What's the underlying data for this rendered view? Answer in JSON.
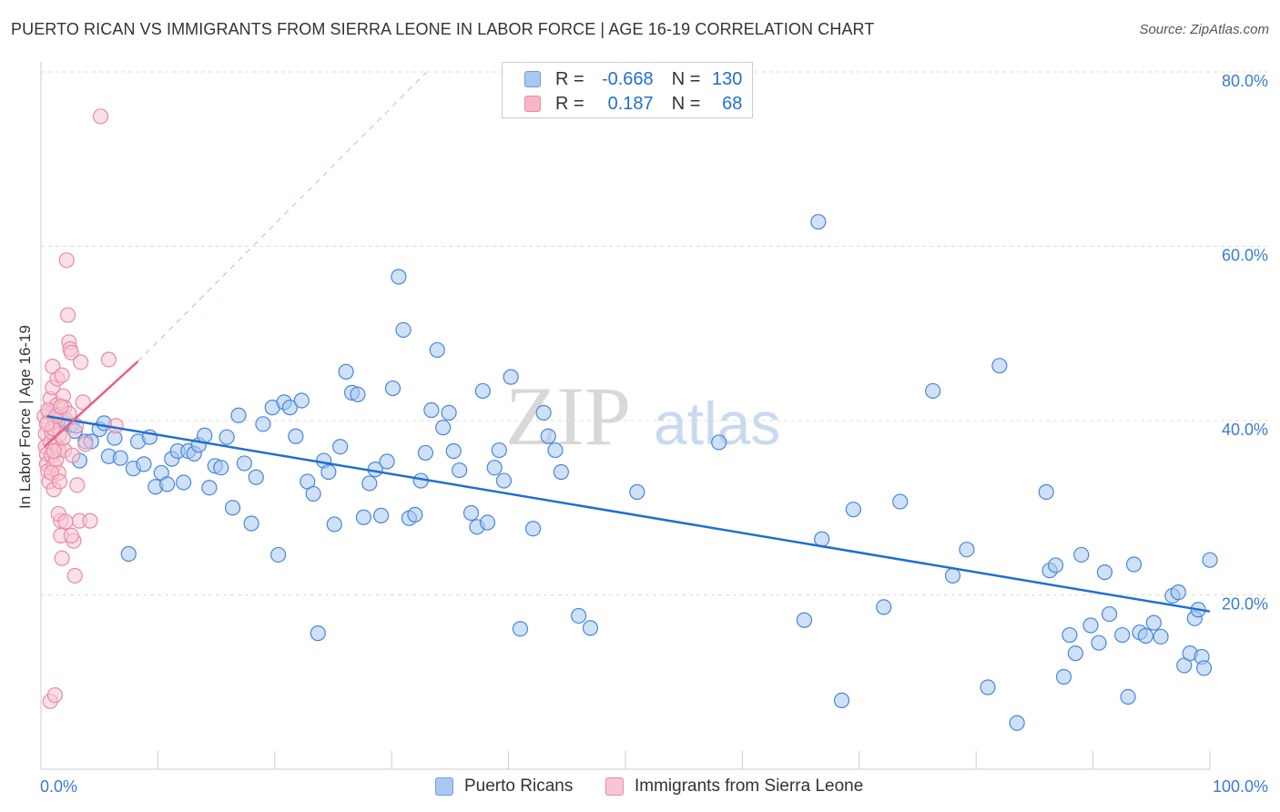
{
  "title": "PUERTO RICAN VS IMMIGRANTS FROM SIERRA LEONE IN LABOR FORCE | AGE 16-19 CORRELATION CHART",
  "source": "Source: ZipAtlas.com",
  "watermark": {
    "zip": "ZIP",
    "atlas": "atlas"
  },
  "legend": {
    "rows": [
      {
        "r_label": "R =",
        "r_value": "-0.668",
        "n_label": "N =",
        "n_value": "130",
        "color": "#a8c8f0",
        "border": "#6a9fe0"
      },
      {
        "r_label": "R =",
        "r_value": "0.187",
        "n_label": "N =",
        "n_value": "68",
        "color": "#f7b6c8",
        "border": "#e88aa5"
      }
    ]
  },
  "bottom_legend": [
    {
      "label": "Puerto Ricans",
      "color": "#a8c8f0",
      "border": "#6a9fe0"
    },
    {
      "label": "Immigrants from Sierra Leone",
      "color": "#f7c6d4",
      "border": "#e88aa5"
    }
  ],
  "chart_data": {
    "type": "scatter",
    "title": "PUERTO RICAN VS IMMIGRANTS FROM SIERRA LEONE IN LABOR FORCE | AGE 16-19 CORRELATION CHART",
    "xlabel": "",
    "ylabel": "In Labor Force | Age 16-19",
    "xlim": [
      0,
      100
    ],
    "ylim": [
      0,
      80
    ],
    "x_tick_labels": [
      "0.0%",
      "100.0%"
    ],
    "y_ticks": [
      20,
      40,
      60,
      80
    ],
    "y_tick_labels": [
      "20.0%",
      "40.0%",
      "60.0%",
      "80.0%"
    ],
    "grid": true,
    "series": [
      {
        "name": "Puerto Ricans",
        "color": "#4a86d8",
        "fill": "#a8c8f0",
        "trend": {
          "x": [
            0.5,
            100
          ],
          "y": [
            40.5,
            18.1
          ],
          "color": "#1f6fd0"
        },
        "points": [
          [
            1.0,
            41.0
          ],
          [
            1.5,
            40.2
          ],
          [
            2.0,
            39.8
          ],
          [
            2.6,
            39.5
          ],
          [
            2.9,
            38.8
          ],
          [
            3.3,
            35.4
          ],
          [
            3.8,
            37.6
          ],
          [
            4.3,
            37.6
          ],
          [
            5.0,
            39.0
          ],
          [
            5.4,
            39.7
          ],
          [
            5.8,
            35.9
          ],
          [
            6.3,
            38.0
          ],
          [
            6.8,
            35.7
          ],
          [
            7.5,
            24.7
          ],
          [
            7.9,
            34.5
          ],
          [
            8.3,
            37.6
          ],
          [
            8.8,
            35.0
          ],
          [
            9.3,
            38.1
          ],
          [
            9.8,
            32.4
          ],
          [
            10.3,
            34.0
          ],
          [
            10.8,
            32.7
          ],
          [
            11.2,
            35.6
          ],
          [
            11.7,
            36.5
          ],
          [
            12.2,
            32.9
          ],
          [
            12.6,
            36.5
          ],
          [
            13.1,
            36.2
          ],
          [
            13.5,
            37.2
          ],
          [
            14.0,
            38.3
          ],
          [
            14.4,
            32.3
          ],
          [
            14.9,
            34.8
          ],
          [
            15.4,
            34.6
          ],
          [
            15.9,
            38.1
          ],
          [
            16.4,
            30.0
          ],
          [
            16.9,
            40.6
          ],
          [
            17.4,
            35.1
          ],
          [
            18.0,
            28.2
          ],
          [
            18.4,
            33.5
          ],
          [
            19.0,
            39.6
          ],
          [
            19.8,
            41.5
          ],
          [
            20.3,
            24.6
          ],
          [
            20.8,
            42.1
          ],
          [
            21.3,
            41.5
          ],
          [
            21.8,
            38.2
          ],
          [
            22.3,
            42.3
          ],
          [
            22.8,
            33.0
          ],
          [
            23.3,
            31.6
          ],
          [
            23.7,
            15.6
          ],
          [
            24.2,
            35.4
          ],
          [
            24.6,
            34.1
          ],
          [
            25.1,
            28.1
          ],
          [
            25.6,
            37.0
          ],
          [
            26.1,
            45.6
          ],
          [
            26.6,
            43.2
          ],
          [
            27.1,
            43.0
          ],
          [
            27.6,
            28.9
          ],
          [
            28.1,
            32.8
          ],
          [
            28.6,
            34.4
          ],
          [
            29.1,
            29.1
          ],
          [
            29.6,
            35.3
          ],
          [
            30.1,
            43.7
          ],
          [
            30.6,
            56.5
          ],
          [
            31.0,
            50.4
          ],
          [
            31.5,
            28.8
          ],
          [
            32.0,
            29.2
          ],
          [
            32.5,
            33.1
          ],
          [
            32.9,
            36.3
          ],
          [
            33.4,
            41.2
          ],
          [
            33.9,
            48.1
          ],
          [
            34.4,
            39.2
          ],
          [
            34.9,
            40.9
          ],
          [
            35.3,
            36.5
          ],
          [
            35.8,
            34.3
          ],
          [
            36.8,
            29.4
          ],
          [
            37.3,
            27.8
          ],
          [
            37.8,
            43.4
          ],
          [
            38.2,
            28.3
          ],
          [
            38.8,
            34.6
          ],
          [
            39.2,
            36.6
          ],
          [
            39.6,
            33.1
          ],
          [
            40.2,
            45.0
          ],
          [
            41.0,
            16.1
          ],
          [
            42.1,
            27.6
          ],
          [
            43.0,
            40.9
          ],
          [
            43.4,
            38.2
          ],
          [
            44.0,
            36.6
          ],
          [
            44.5,
            34.1
          ],
          [
            46.0,
            17.6
          ],
          [
            47.0,
            16.2
          ],
          [
            51.0,
            31.8
          ],
          [
            58.0,
            37.5
          ],
          [
            65.3,
            17.1
          ],
          [
            66.5,
            62.8
          ],
          [
            66.8,
            26.4
          ],
          [
            68.5,
            7.9
          ],
          [
            69.5,
            29.8
          ],
          [
            72.1,
            18.6
          ],
          [
            73.5,
            30.7
          ],
          [
            76.3,
            43.4
          ],
          [
            78.0,
            22.2
          ],
          [
            79.2,
            25.2
          ],
          [
            81.0,
            9.4
          ],
          [
            82.0,
            46.3
          ],
          [
            83.5,
            5.3
          ],
          [
            86.0,
            31.8
          ],
          [
            86.3,
            22.8
          ],
          [
            86.8,
            23.4
          ],
          [
            87.5,
            10.6
          ],
          [
            88.0,
            15.4
          ],
          [
            88.5,
            13.3
          ],
          [
            89.0,
            24.6
          ],
          [
            89.8,
            16.5
          ],
          [
            90.5,
            14.5
          ],
          [
            91.0,
            22.6
          ],
          [
            91.4,
            17.8
          ],
          [
            92.5,
            15.4
          ],
          [
            93.0,
            8.3
          ],
          [
            93.5,
            23.5
          ],
          [
            94.0,
            15.7
          ],
          [
            94.5,
            15.3
          ],
          [
            95.2,
            16.8
          ],
          [
            95.8,
            15.2
          ],
          [
            96.8,
            19.9
          ],
          [
            97.3,
            20.3
          ],
          [
            97.8,
            11.9
          ],
          [
            98.3,
            13.3
          ],
          [
            98.7,
            17.3
          ],
          [
            99.3,
            12.9
          ],
          [
            99.5,
            11.6
          ],
          [
            100.0,
            24.0
          ],
          [
            99.0,
            18.3
          ]
        ]
      },
      {
        "name": "Immigrants from Sierra Leone",
        "color": "#e88aa5",
        "fill": "#f7c6d4",
        "trend": {
          "x": [
            0.3,
            8.3
          ],
          "y": [
            37.0,
            46.8
          ],
          "color": "#e8608a"
        },
        "extrapolation": {
          "x": [
            8.3,
            33.0
          ],
          "y": [
            46.8,
            80.0
          ]
        },
        "points": [
          [
            0.3,
            40.5
          ],
          [
            0.4,
            38.5
          ],
          [
            0.4,
            37.0
          ],
          [
            0.5,
            36.1
          ],
          [
            0.5,
            35.0
          ],
          [
            0.6,
            34.2
          ],
          [
            0.6,
            39.8
          ],
          [
            0.7,
            41.0
          ],
          [
            0.7,
            33.0
          ],
          [
            0.8,
            37.5
          ],
          [
            0.8,
            42.5
          ],
          [
            0.9,
            38.7
          ],
          [
            0.9,
            36.0
          ],
          [
            1.0,
            43.8
          ],
          [
            1.0,
            46.2
          ],
          [
            1.1,
            34.9
          ],
          [
            1.1,
            32.1
          ],
          [
            1.2,
            40.0
          ],
          [
            1.2,
            39.0
          ],
          [
            1.3,
            37.2
          ],
          [
            1.3,
            35.5
          ],
          [
            1.4,
            41.8
          ],
          [
            1.4,
            44.8
          ],
          [
            1.5,
            34.0
          ],
          [
            1.5,
            36.7
          ],
          [
            1.6,
            38.4
          ],
          [
            1.6,
            40.7
          ],
          [
            1.7,
            28.5
          ],
          [
            1.7,
            26.8
          ],
          [
            1.8,
            24.2
          ],
          [
            1.8,
            45.2
          ],
          [
            1.9,
            42.8
          ],
          [
            2.0,
            41.5
          ],
          [
            2.0,
            36.6
          ],
          [
            2.1,
            40.1
          ],
          [
            2.2,
            58.4
          ],
          [
            2.3,
            52.1
          ],
          [
            2.4,
            49.0
          ],
          [
            2.5,
            48.2
          ],
          [
            2.6,
            47.8
          ],
          [
            2.7,
            36.0
          ],
          [
            2.8,
            26.2
          ],
          [
            2.9,
            22.2
          ],
          [
            3.0,
            39.4
          ],
          [
            3.1,
            32.6
          ],
          [
            3.3,
            28.5
          ],
          [
            3.4,
            46.7
          ],
          [
            3.6,
            42.1
          ],
          [
            3.8,
            37.3
          ],
          [
            4.2,
            28.5
          ],
          [
            5.1,
            74.9
          ],
          [
            5.8,
            47.0
          ],
          [
            6.4,
            39.4
          ],
          [
            0.8,
            7.8
          ],
          [
            1.2,
            8.5
          ],
          [
            1.5,
            29.3
          ],
          [
            2.1,
            28.4
          ],
          [
            2.6,
            26.8
          ],
          [
            0.6,
            41.2
          ],
          [
            1.0,
            39.1
          ],
          [
            1.3,
            40.5
          ],
          [
            1.9,
            38.0
          ],
          [
            0.5,
            39.6
          ],
          [
            0.9,
            34.0
          ],
          [
            1.1,
            36.5
          ],
          [
            1.6,
            33.0
          ],
          [
            2.4,
            40.8
          ],
          [
            1.7,
            41.6
          ]
        ]
      }
    ]
  }
}
